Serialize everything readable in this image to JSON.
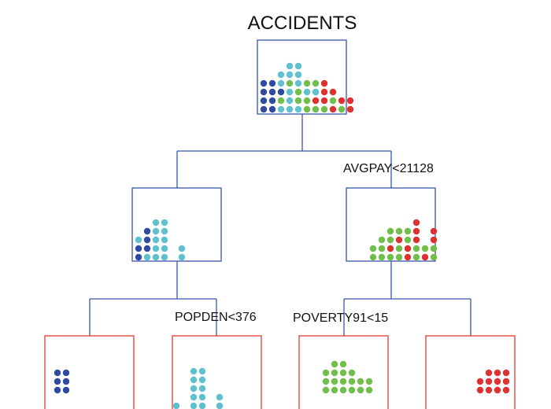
{
  "title": "ACCIDENTS",
  "colors": {
    "internal_border": "#3a55a8",
    "leaf_border": "#e03a2e",
    "edge": "#3a55a8",
    "classes": {
      "blue": "#2f4aa0",
      "cyan": "#5fc0cf",
      "green": "#6fbf4a",
      "red": "#e03131"
    }
  },
  "splits": {
    "root": "AVGPAY<21128",
    "left": "POPDEN<376",
    "right": "POVERTY91<15"
  },
  "nodes": [
    {
      "id": "root",
      "type": "internal",
      "columns": [
        [
          "blue",
          "blue",
          "blue",
          "blue"
        ],
        [
          "blue",
          "blue",
          "blue",
          "blue"
        ],
        [
          "cyan",
          "green",
          "blue",
          "cyan",
          "cyan"
        ],
        [
          "cyan",
          "cyan",
          "cyan",
          "green",
          "cyan",
          "cyan"
        ],
        [
          "cyan",
          "green",
          "green",
          "cyan",
          "cyan",
          "cyan"
        ],
        [
          "green",
          "green",
          "cyan",
          "green"
        ],
        [
          "green",
          "red",
          "cyan",
          "green"
        ],
        [
          "green",
          "red",
          "red",
          "red"
        ],
        [
          "red",
          "green",
          "red"
        ],
        [
          "green",
          "red"
        ],
        [
          "red",
          "red"
        ]
      ]
    },
    {
      "id": "left",
      "type": "internal",
      "columns": [
        [
          "blue",
          "blue",
          "cyan"
        ],
        [
          "cyan",
          "blue",
          "blue",
          "blue"
        ],
        [
          "cyan",
          "cyan",
          "cyan",
          "cyan",
          "cyan"
        ],
        [
          "cyan",
          "cyan",
          "cyan",
          "cyan",
          "cyan"
        ],
        [],
        [
          "cyan",
          "cyan"
        ]
      ]
    },
    {
      "id": "right",
      "type": "internal",
      "columns": [
        [
          "green",
          "green"
        ],
        [
          "green",
          "green",
          "green"
        ],
        [
          "green",
          "red",
          "green",
          "green"
        ],
        [
          "green",
          "green",
          "red",
          "green"
        ],
        [
          "red",
          "red",
          "green",
          "green"
        ],
        [
          "green",
          "green",
          "red",
          "red",
          "red"
        ],
        [
          "red",
          "green"
        ],
        [
          "green",
          "green",
          "red",
          "red"
        ]
      ]
    },
    {
      "id": "leaf1",
      "type": "leaf",
      "columns": [
        [
          "blue",
          "blue",
          "blue"
        ],
        [
          "blue",
          "blue",
          "blue"
        ]
      ]
    },
    {
      "id": "leaf2",
      "type": "leaf",
      "columns": [
        [
          "cyan"
        ],
        [],
        [
          "cyan",
          "cyan",
          "cyan",
          "cyan",
          "cyan"
        ],
        [
          "cyan",
          "cyan",
          "cyan",
          "cyan",
          "cyan"
        ],
        [],
        [
          "cyan",
          "cyan"
        ]
      ]
    },
    {
      "id": "leaf3",
      "type": "leaf",
      "columns": [
        [
          "green",
          "green",
          "green"
        ],
        [
          "green",
          "green",
          "green",
          "green"
        ],
        [
          "green",
          "green",
          "green",
          "green"
        ],
        [
          "green",
          "green",
          "green"
        ],
        [
          "green",
          "green"
        ],
        [
          "green",
          "green"
        ]
      ]
    },
    {
      "id": "leaf4",
      "type": "leaf",
      "columns": [
        [
          "red",
          "red"
        ],
        [
          "red",
          "red",
          "red"
        ],
        [
          "red",
          "red",
          "red"
        ],
        [
          "red",
          "red",
          "red"
        ]
      ]
    }
  ]
}
